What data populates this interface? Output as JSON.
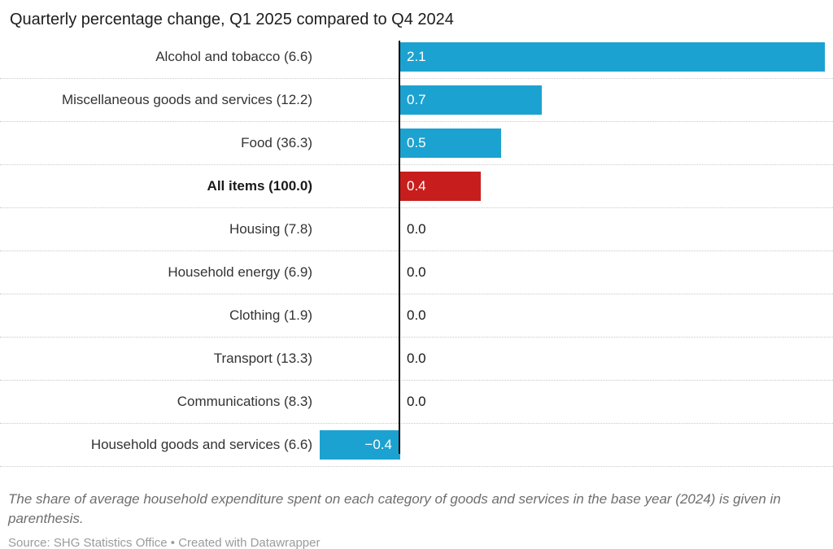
{
  "header": {
    "title": "Quarterly percentage change, Q1 2025 compared to Q4 2024"
  },
  "chart_data": {
    "type": "bar",
    "orientation": "horizontal",
    "title": "Quarterly percentage change, Q1 2025 compared to Q4 2024",
    "categories": [
      "Alcohol and tobacco (6.6)",
      "Miscellaneous goods and services (12.2)",
      "Food (36.3)",
      "All items (100.0)",
      "Housing (7.8)",
      "Household energy (6.9)",
      "Clothing (1.9)",
      "Transport (13.3)",
      "Communications (8.3)",
      "Household goods and services (6.6)"
    ],
    "values": [
      2.1,
      0.7,
      0.5,
      0.4,
      0.0,
      0.0,
      0.0,
      0.0,
      0.0,
      -0.4
    ],
    "xlim": [
      -0.4,
      2.1
    ],
    "grid": "dotted-row-separators",
    "legend": "none",
    "rows": [
      {
        "label": "Alcohol and tobacco (6.6)",
        "value": 2.1,
        "value_label": "2.1",
        "color": "#1CA2D0",
        "bold": false
      },
      {
        "label": "Miscellaneous goods and services (12.2)",
        "value": 0.7,
        "value_label": "0.7",
        "color": "#1CA2D0",
        "bold": false
      },
      {
        "label": "Food (36.3)",
        "value": 0.5,
        "value_label": "0.5",
        "color": "#1CA2D0",
        "bold": false
      },
      {
        "label": "All items (100.0)",
        "value": 0.4,
        "value_label": "0.4",
        "color": "#C71E1D",
        "bold": true
      },
      {
        "label": "Housing (7.8)",
        "value": 0.0,
        "value_label": "0.0",
        "color": null,
        "bold": false
      },
      {
        "label": "Household energy (6.9)",
        "value": 0.0,
        "value_label": "0.0",
        "color": null,
        "bold": false
      },
      {
        "label": "Clothing (1.9)",
        "value": 0.0,
        "value_label": "0.0",
        "color": null,
        "bold": false
      },
      {
        "label": "Transport (13.3)",
        "value": 0.0,
        "value_label": "0.0",
        "color": null,
        "bold": false
      },
      {
        "label": "Communications (8.3)",
        "value": 0.0,
        "value_label": "0.0",
        "color": null,
        "bold": false
      },
      {
        "label": "Household goods and services (6.6)",
        "value": -0.4,
        "value_label": "−0.4",
        "color": "#1CA2D0",
        "bold": false
      }
    ]
  },
  "colors": {
    "bar_blue": "#1CA2D0",
    "bar_red": "#C71E1D",
    "axis": "#000000",
    "label_text": "#333333",
    "title_text": "#1d1d1d",
    "note_text": "#6e6e6e",
    "source_text": "#9b9b9b"
  },
  "footer": {
    "note": "The share of average household expenditure spent on each category of goods and services in the base year (2024) is given in parenthesis.",
    "source": "Source: SHG Statistics Office • Created with Datawrapper"
  }
}
